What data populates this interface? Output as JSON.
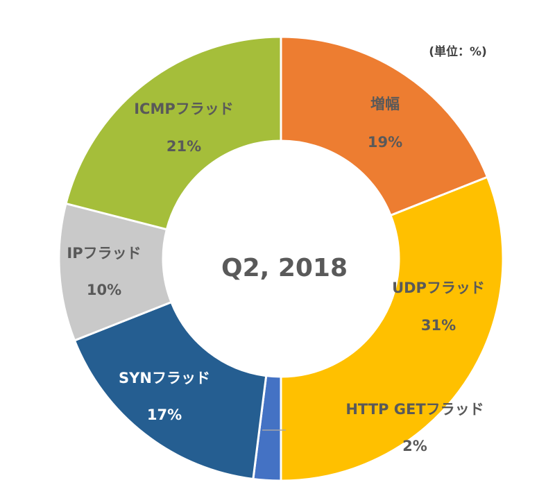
{
  "chart_data": {
    "type": "pie",
    "donut": true,
    "center_label": "Q2, 2018",
    "unit_note": "(単位：%)",
    "legend": "none",
    "slices": [
      {
        "name": "増幅",
        "value": 19,
        "label": "19%",
        "color": "#ED7D31"
      },
      {
        "name": "UDPフラッド",
        "value": 31,
        "label": "31%",
        "color": "#FFC000"
      },
      {
        "name": "HTTP GETフラッド",
        "value": 2,
        "label": "2%",
        "color": "#4472C4"
      },
      {
        "name": "SYNフラッド",
        "value": 17,
        "label": "17%",
        "color": "#255E91"
      },
      {
        "name": "IPフラッド",
        "value": 10,
        "label": "10%",
        "color": "#C9C9C9"
      },
      {
        "name": "ICMPフラッド",
        "value": 21,
        "label": "21%",
        "color": "#A5BE3A"
      }
    ]
  }
}
